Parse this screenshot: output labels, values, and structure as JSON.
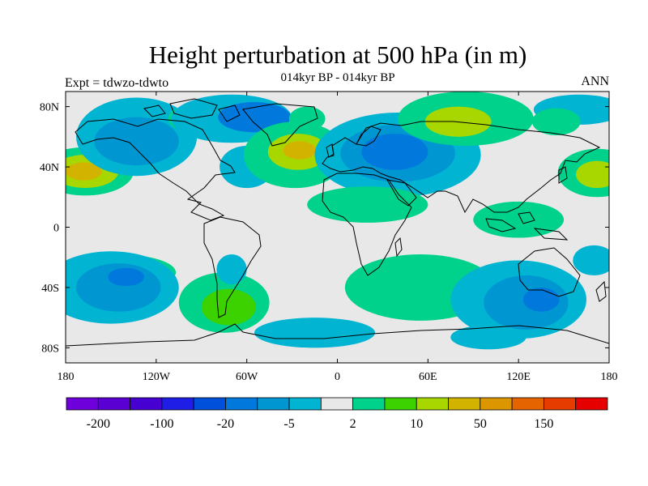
{
  "title": "Height perturbation at 500 hPa (in m)",
  "subtitle": "014kyr BP - 014kyr BP",
  "left_label": "Expt = tdwzo-tdwto",
  "right_label": "ANN",
  "map": {
    "lon_range": [
      -180,
      180
    ],
    "lat_range": [
      -90,
      90
    ],
    "lat_ticks": [
      {
        "v": 80,
        "label": "80N"
      },
      {
        "v": 40,
        "label": "40N"
      },
      {
        "v": 0,
        "label": "0"
      },
      {
        "v": -40,
        "label": "40S"
      },
      {
        "v": -80,
        "label": "80S"
      }
    ],
    "lon_ticks": [
      {
        "v": -180,
        "label": "180"
      },
      {
        "v": -120,
        "label": "120W"
      },
      {
        "v": -60,
        "label": "60W"
      },
      {
        "v": 0,
        "label": "0"
      },
      {
        "v": 60,
        "label": "60E"
      },
      {
        "v": 120,
        "label": "120E"
      },
      {
        "v": 180,
        "label": "180"
      }
    ],
    "background_color": "#e8e8e8",
    "features": [
      {
        "lon": -167,
        "lat": 37,
        "rx": 32,
        "ry": 16,
        "color": "#00d28c"
      },
      {
        "lon": -167,
        "lat": 37,
        "rx": 22,
        "ry": 11,
        "color": "#a8d700"
      },
      {
        "lon": -168,
        "lat": 37,
        "rx": 12,
        "ry": 6,
        "color": "#d2b400"
      },
      {
        "lon": 172,
        "lat": 36,
        "rx": 26,
        "ry": 16,
        "color": "#00d28c"
      },
      {
        "lon": 172,
        "lat": 35,
        "rx": 14,
        "ry": 9,
        "color": "#a8d700"
      },
      {
        "lon": -133,
        "lat": 60,
        "rx": 40,
        "ry": 26,
        "color": "#00b4d2"
      },
      {
        "lon": -133,
        "lat": 57,
        "rx": 28,
        "ry": 16,
        "color": "#0096d2"
      },
      {
        "lon": -100,
        "lat": 72,
        "rx": 12,
        "ry": 8,
        "color": "#00d28c"
      },
      {
        "lon": -70,
        "lat": 72,
        "rx": 40,
        "ry": 16,
        "color": "#00b4d2"
      },
      {
        "lon": -55,
        "lat": 73,
        "rx": 24,
        "ry": 10,
        "color": "#0078dc"
      },
      {
        "lon": -60,
        "lat": 40,
        "rx": 18,
        "ry": 14,
        "color": "#00b4d2"
      },
      {
        "lon": -28,
        "lat": 48,
        "rx": 34,
        "ry": 22,
        "color": "#00d28c"
      },
      {
        "lon": -26,
        "lat": 50,
        "rx": 20,
        "ry": 12,
        "color": "#a8d700"
      },
      {
        "lon": -25,
        "lat": 51,
        "rx": 11,
        "ry": 6,
        "color": "#d2b400"
      },
      {
        "lon": -20,
        "lat": 72,
        "rx": 12,
        "ry": 8,
        "color": "#00d28c"
      },
      {
        "lon": 40,
        "lat": 48,
        "rx": 55,
        "ry": 28,
        "color": "#00b4d2"
      },
      {
        "lon": 40,
        "lat": 49,
        "rx": 38,
        "ry": 19,
        "color": "#0096d2"
      },
      {
        "lon": 38,
        "lat": 50,
        "rx": 22,
        "ry": 12,
        "color": "#0078dc"
      },
      {
        "lon": 20,
        "lat": 15,
        "rx": 40,
        "ry": 12,
        "color": "#00d28c"
      },
      {
        "lon": 85,
        "lat": 72,
        "rx": 45,
        "ry": 18,
        "color": "#00d28c"
      },
      {
        "lon": 80,
        "lat": 70,
        "rx": 22,
        "ry": 10,
        "color": "#a8d700"
      },
      {
        "lon": 160,
        "lat": 78,
        "rx": 30,
        "ry": 10,
        "color": "#00b4d2"
      },
      {
        "lon": 145,
        "lat": 70,
        "rx": 16,
        "ry": 9,
        "color": "#00d28c"
      },
      {
        "lon": -145,
        "lat": -30,
        "rx": 38,
        "ry": 12,
        "color": "#00d28c"
      },
      {
        "lon": -150,
        "lat": -40,
        "rx": 45,
        "ry": 24,
        "color": "#00b4d2"
      },
      {
        "lon": -145,
        "lat": -40,
        "rx": 28,
        "ry": 16,
        "color": "#0096d2"
      },
      {
        "lon": -140,
        "lat": -33,
        "rx": 12,
        "ry": 6,
        "color": "#0078dc"
      },
      {
        "lon": -75,
        "lat": -50,
        "rx": 30,
        "ry": 20,
        "color": "#00d28c"
      },
      {
        "lon": -72,
        "lat": -53,
        "rx": 18,
        "ry": 12,
        "color": "#3cd200"
      },
      {
        "lon": -70,
        "lat": -28,
        "rx": 10,
        "ry": 10,
        "color": "#00b4d2"
      },
      {
        "lon": -15,
        "lat": -70,
        "rx": 40,
        "ry": 10,
        "color": "#00b4d2"
      },
      {
        "lon": 55,
        "lat": -40,
        "rx": 50,
        "ry": 22,
        "color": "#00d28c"
      },
      {
        "lon": 120,
        "lat": -48,
        "rx": 45,
        "ry": 26,
        "color": "#00b4d2"
      },
      {
        "lon": 125,
        "lat": -50,
        "rx": 28,
        "ry": 18,
        "color": "#0096d2"
      },
      {
        "lon": 135,
        "lat": -48,
        "rx": 12,
        "ry": 8,
        "color": "#0078dc"
      },
      {
        "lon": 100,
        "lat": -73,
        "rx": 25,
        "ry": 8,
        "color": "#00b4d2"
      },
      {
        "lon": 170,
        "lat": -22,
        "rx": 14,
        "ry": 10,
        "color": "#00b4d2"
      },
      {
        "lon": 120,
        "lat": 5,
        "rx": 30,
        "ry": 12,
        "color": "#00d28c"
      }
    ]
  },
  "colorbar": {
    "colors": [
      "#6e00dc",
      "#5a00d2",
      "#4600d2",
      "#1e1ee6",
      "#0050dc",
      "#0078dc",
      "#0096d2",
      "#00b4d2",
      "#e8e8e8",
      "#00d28c",
      "#3cd200",
      "#a8d700",
      "#d2b400",
      "#dc9600",
      "#e66400",
      "#e63c00",
      "#e60000"
    ],
    "labels": [
      {
        "label": "-200",
        "index": 1
      },
      {
        "label": "-100",
        "index": 3
      },
      {
        "label": "-20",
        "index": 5
      },
      {
        "label": "-5",
        "index": 7
      },
      {
        "label": "2",
        "index": 9
      },
      {
        "label": "10",
        "index": 11
      },
      {
        "label": "50",
        "index": 13
      },
      {
        "label": "150",
        "index": 15
      }
    ]
  }
}
